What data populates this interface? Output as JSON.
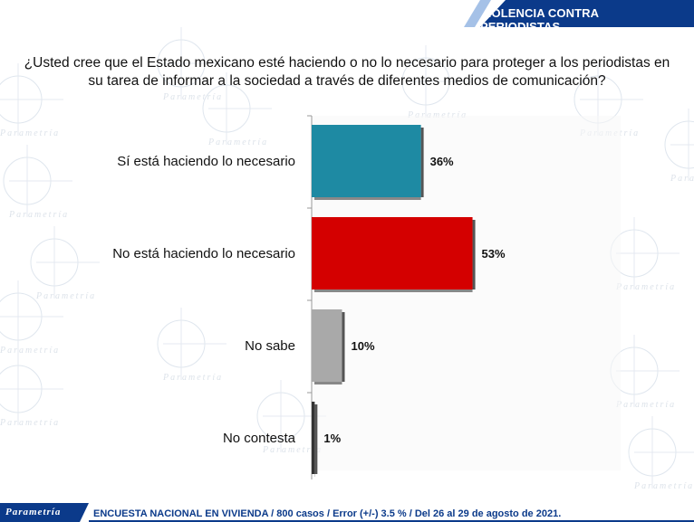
{
  "header": {
    "title": "VIOLENCIA CONTRA PERIODISTAS"
  },
  "question": "¿Usted cree que el Estado mexicano esté haciendo o no lo necesario para proteger a los periodistas en su tarea de informar a la sociedad a través de diferentes medios de comunicación?",
  "watermark": {
    "text": "Parametría"
  },
  "footer": {
    "logo": "Parametría",
    "note": "ENCUESTA NACIONAL EN VIVIENDA / 800 casos / Error (+/-) 3.5 % / Del 26 al 29 de agosto de 2021."
  },
  "chart_data": {
    "type": "bar",
    "orientation": "horizontal",
    "categories": [
      "Sí está haciendo lo necesario",
      "No está haciendo lo necesario",
      "No sabe",
      "No contesta"
    ],
    "values": [
      36,
      53,
      10,
      1
    ],
    "data_labels": [
      "36%",
      "53%",
      "10%",
      "1%"
    ],
    "colors": [
      "#1e8aa3",
      "#d40000",
      "#a9a9a9",
      "#333333"
    ],
    "xlim": [
      0,
      100
    ],
    "grid": false,
    "legend": "none"
  }
}
